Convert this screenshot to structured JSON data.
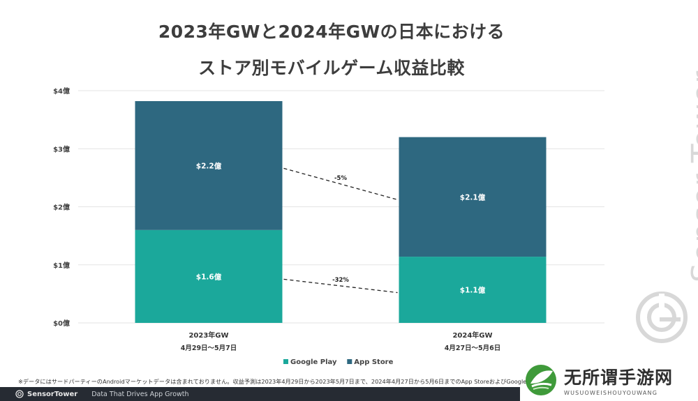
{
  "chart_data": {
    "type": "bar",
    "stacked": true,
    "title_line1": "2023年GWと2024年GWの日本における",
    "title_line2": "ストア別モバイルゲーム収益比較",
    "categories": [
      "2023年GW",
      "2024年GW"
    ],
    "category_sublabels": [
      "4月29日～5月7日",
      "4月27日～5月6日"
    ],
    "y_ticks": [
      0,
      1,
      2,
      3,
      4
    ],
    "y_tick_labels": [
      "$0億",
      "$1億",
      "$2億",
      "$3億",
      "$4億"
    ],
    "ylim": [
      0,
      4
    ],
    "grid": true,
    "series": [
      {
        "name": "Google Play",
        "color": "#1ba89b",
        "values": [
          1.6,
          1.14
        ],
        "labels": [
          "$1.6億",
          "$1.1億"
        ]
      },
      {
        "name": "App Store",
        "color": "#2e6880",
        "values": [
          2.22,
          2.06
        ],
        "labels": [
          "$2.2億",
          "$2.1億"
        ]
      }
    ],
    "annotations": [
      {
        "series": "App Store",
        "text": "-5%"
      },
      {
        "series": "Google Play",
        "text": "-32%"
      }
    ],
    "legend_position": "bottom"
  },
  "footnote": "※データにはサードパーティーのAndroidマーケットデータは含まれておりません。収益予測は2023年4月29日から2023年5月7日まで、2024年4月27日から5月6日までのApp StoreおよびGoogle",
  "footer": {
    "brand": "SensorTower",
    "tagline": "Data That Drives App Growth"
  },
  "watermark": "Sensor Tower",
  "badge": {
    "main": "无所谓手游网",
    "sub": "WUSUOWEISHOUYOUWANG"
  }
}
